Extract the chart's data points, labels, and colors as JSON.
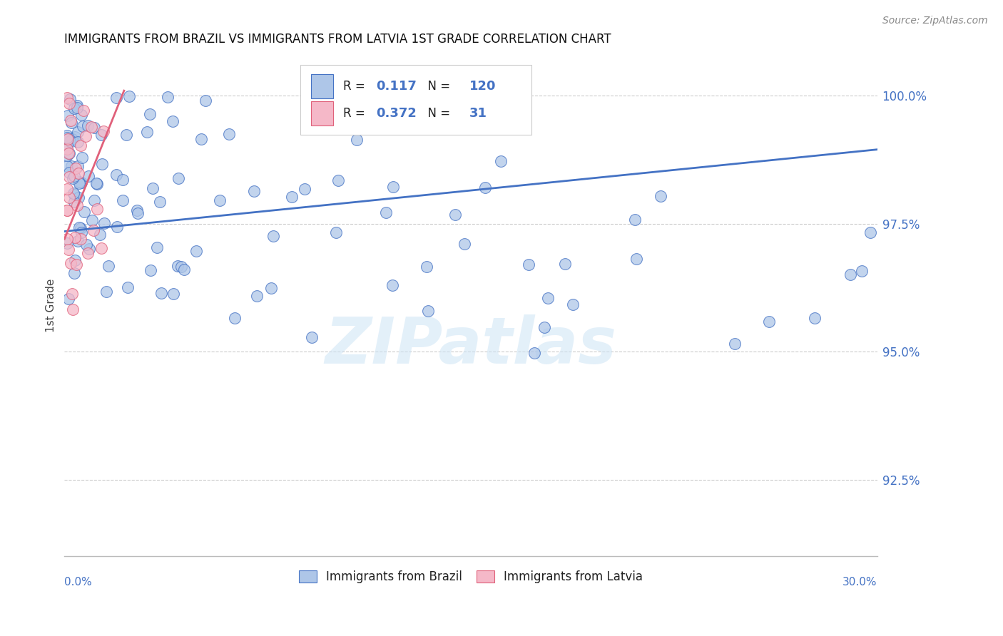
{
  "title": "IMMIGRANTS FROM BRAZIL VS IMMIGRANTS FROM LATVIA 1ST GRADE CORRELATION CHART",
  "source": "Source: ZipAtlas.com",
  "ylabel": "1st Grade",
  "watermark": "ZIPatlas",
  "x_min": 0.0,
  "x_max": 0.3,
  "y_min": 0.91,
  "y_max": 1.008,
  "y_ticks": [
    0.925,
    0.95,
    0.975,
    1.0
  ],
  "y_tick_labels": [
    "92.5%",
    "95.0%",
    "97.5%",
    "100.0%"
  ],
  "brazil_R": 0.117,
  "brazil_N": 120,
  "latvia_R": 0.372,
  "latvia_N": 31,
  "brazil_color": "#aec6e8",
  "latvia_color": "#f5b8c8",
  "brazil_line_color": "#4472c4",
  "latvia_line_color": "#e0607a",
  "legend_brazil_label": "Immigrants from Brazil",
  "legend_latvia_label": "Immigrants from Latvia",
  "brazil_trend_x0": 0.0,
  "brazil_trend_y0": 0.9735,
  "brazil_trend_x1": 0.3,
  "brazil_trend_y1": 0.9895,
  "latvia_trend_x0": 0.0,
  "latvia_trend_y0": 0.972,
  "latvia_trend_x1": 0.022,
  "latvia_trend_y1": 1.001
}
